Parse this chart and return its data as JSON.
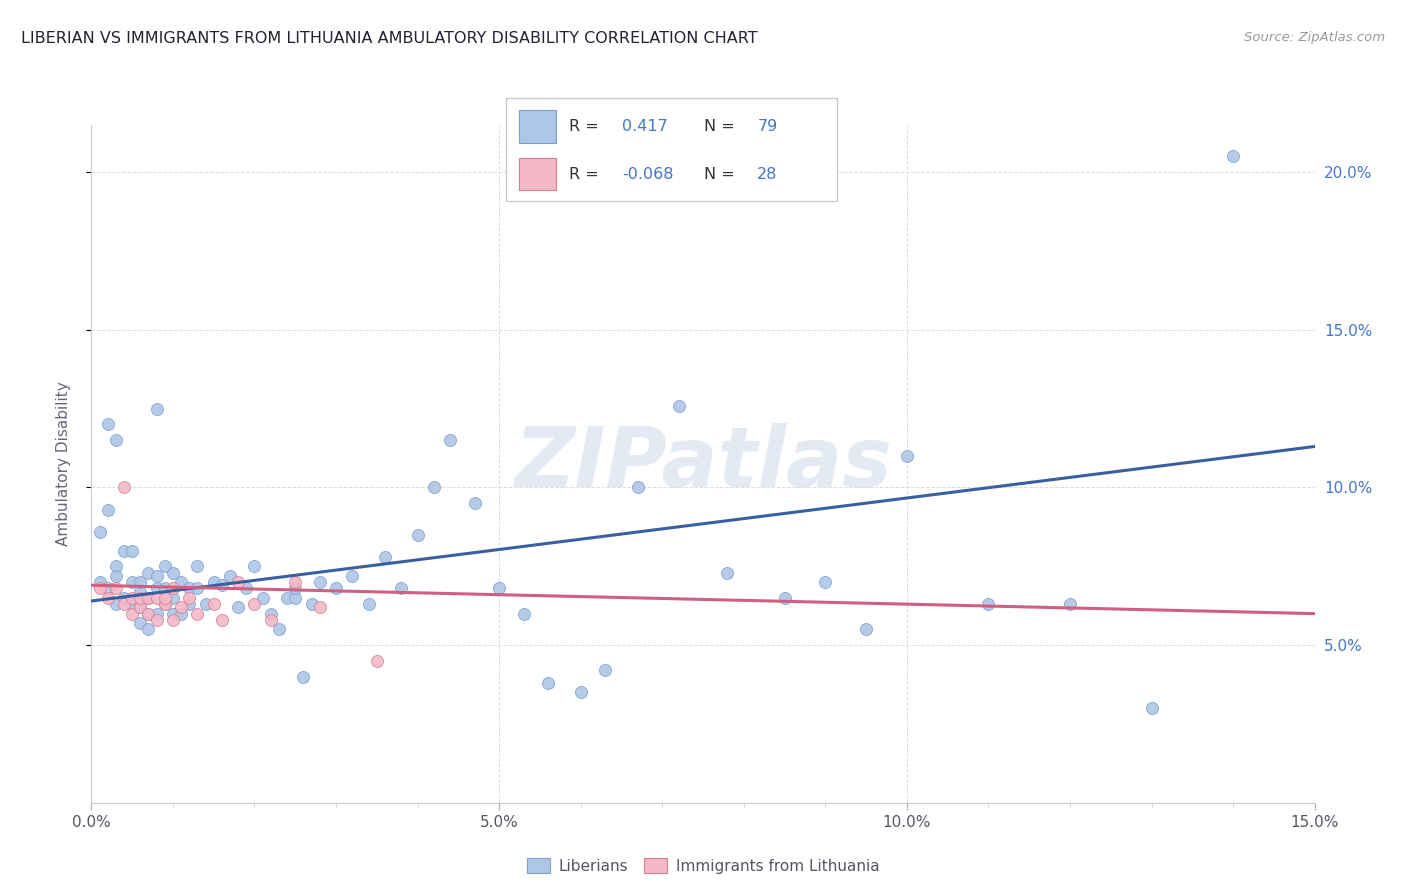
{
  "title": "LIBERIAN VS IMMIGRANTS FROM LITHUANIA AMBULATORY DISABILITY CORRELATION CHART",
  "source": "Source: ZipAtlas.com",
  "ylabel": "Ambulatory Disability",
  "xlim": [
    0.0,
    0.15
  ],
  "ylim": [
    0.0,
    0.215
  ],
  "liberian_color": "#aec6e8",
  "lithuania_color": "#f4b8c8",
  "liberian_edge": "#7aa0cc",
  "lithuania_edge": "#d08090",
  "trend_liberian_color": "#3a5fa0",
  "trend_lithuania_color": "#d06080",
  "watermark": "ZIPatlas",
  "legend_liberian": "Liberians",
  "legend_lithuania": "Immigrants from Lithuania",
  "R_liberian_str": "0.417",
  "N_liberian_str": "79",
  "R_lithuania_str": "-0.068",
  "N_lithuania_str": "28",
  "label_color_black": "#333333",
  "label_color_blue": "#4477cc",
  "liberian_x": [
    0.001,
    0.001,
    0.002,
    0.002,
    0.003,
    0.003,
    0.003,
    0.004,
    0.004,
    0.005,
    0.005,
    0.005,
    0.006,
    0.006,
    0.006,
    0.006,
    0.007,
    0.007,
    0.007,
    0.007,
    0.008,
    0.008,
    0.008,
    0.009,
    0.009,
    0.009,
    0.01,
    0.01,
    0.01,
    0.011,
    0.011,
    0.012,
    0.012,
    0.013,
    0.013,
    0.014,
    0.015,
    0.016,
    0.017,
    0.018,
    0.019,
    0.02,
    0.021,
    0.022,
    0.023,
    0.024,
    0.025,
    0.026,
    0.027,
    0.028,
    0.03,
    0.032,
    0.034,
    0.036,
    0.038,
    0.04,
    0.042,
    0.044,
    0.047,
    0.05,
    0.053,
    0.056,
    0.06,
    0.063,
    0.067,
    0.072,
    0.078,
    0.085,
    0.09,
    0.095,
    0.1,
    0.11,
    0.12,
    0.13,
    0.14,
    0.002,
    0.003,
    0.008,
    0.025
  ],
  "liberian_y": [
    0.086,
    0.07,
    0.093,
    0.068,
    0.075,
    0.072,
    0.063,
    0.08,
    0.065,
    0.08,
    0.07,
    0.063,
    0.067,
    0.07,
    0.062,
    0.057,
    0.073,
    0.065,
    0.06,
    0.055,
    0.072,
    0.068,
    0.06,
    0.075,
    0.068,
    0.063,
    0.073,
    0.065,
    0.06,
    0.07,
    0.06,
    0.068,
    0.063,
    0.075,
    0.068,
    0.063,
    0.07,
    0.069,
    0.072,
    0.062,
    0.068,
    0.075,
    0.065,
    0.06,
    0.055,
    0.065,
    0.065,
    0.04,
    0.063,
    0.07,
    0.068,
    0.072,
    0.063,
    0.078,
    0.068,
    0.085,
    0.1,
    0.115,
    0.095,
    0.068,
    0.06,
    0.038,
    0.035,
    0.042,
    0.1,
    0.126,
    0.073,
    0.065,
    0.07,
    0.055,
    0.11,
    0.063,
    0.063,
    0.03,
    0.205,
    0.12,
    0.115,
    0.125,
    0.068
  ],
  "lithuania_x": [
    0.001,
    0.002,
    0.003,
    0.004,
    0.004,
    0.005,
    0.005,
    0.006,
    0.006,
    0.007,
    0.007,
    0.008,
    0.008,
    0.009,
    0.009,
    0.01,
    0.01,
    0.011,
    0.012,
    0.013,
    0.015,
    0.016,
    0.018,
    0.02,
    0.022,
    0.025,
    0.028,
    0.035
  ],
  "lithuania_y": [
    0.068,
    0.065,
    0.068,
    0.063,
    0.1,
    0.065,
    0.06,
    0.062,
    0.065,
    0.06,
    0.065,
    0.065,
    0.058,
    0.063,
    0.065,
    0.068,
    0.058,
    0.062,
    0.065,
    0.06,
    0.063,
    0.058,
    0.07,
    0.063,
    0.058,
    0.07,
    0.062,
    0.045
  ],
  "trend_lib_x0": 0.0,
  "trend_lib_x1": 0.15,
  "trend_lib_y0": 0.064,
  "trend_lib_y1": 0.113,
  "trend_lit_x0": 0.0,
  "trend_lit_x1": 0.15,
  "trend_lit_y0": 0.069,
  "trend_lit_y1": 0.06
}
